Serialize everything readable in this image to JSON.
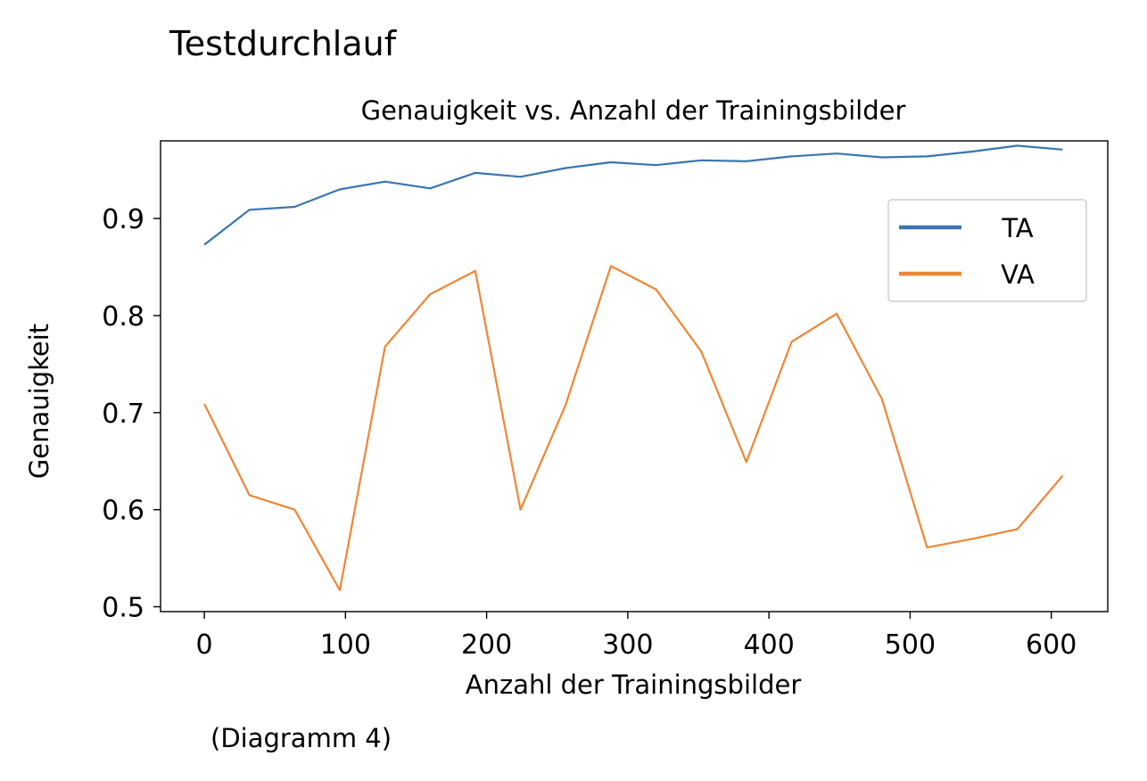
{
  "page": {
    "heading": "Testdurchlauf",
    "caption": "(Diagramm 4)"
  },
  "chart_data": {
    "type": "line",
    "title": "Genauigkeit vs. Anzahl der Trainingsbilder",
    "xlabel": "Anzahl der Trainingsbilder",
    "ylabel": "Genauigkeit",
    "xlim": [
      -31,
      640
    ],
    "ylim": [
      0.495,
      0.98
    ],
    "xticks": [
      0,
      100,
      200,
      300,
      400,
      500,
      600
    ],
    "yticks": [
      0.5,
      0.6,
      0.7,
      0.8,
      0.9
    ],
    "ytick_labels": [
      "0.5",
      "0.6",
      "0.7",
      "0.8",
      "0.9"
    ],
    "grid": false,
    "legend_position": "upper-right",
    "series": [
      {
        "name": "TA",
        "color": "#3a75b0",
        "x": [
          0,
          32,
          64,
          96,
          128,
          160,
          192,
          224,
          256,
          288,
          320,
          352,
          384,
          416,
          448,
          480,
          512,
          544,
          576,
          608
        ],
        "values": [
          0.873,
          0.909,
          0.912,
          0.93,
          0.938,
          0.931,
          0.947,
          0.943,
          0.952,
          0.958,
          0.955,
          0.96,
          0.959,
          0.964,
          0.967,
          0.963,
          0.964,
          0.969,
          0.975,
          0.971
        ]
      },
      {
        "name": "VA",
        "color": "#ef8636",
        "x": [
          0,
          32,
          64,
          96,
          128,
          160,
          192,
          224,
          256,
          288,
          320,
          352,
          384,
          416,
          448,
          480,
          512,
          544,
          576,
          608
        ],
        "values": [
          0.709,
          0.615,
          0.6,
          0.517,
          0.768,
          0.822,
          0.846,
          0.6,
          0.708,
          0.851,
          0.827,
          0.763,
          0.649,
          0.773,
          0.802,
          0.714,
          0.561,
          0.57,
          0.58,
          0.635
        ]
      }
    ]
  }
}
